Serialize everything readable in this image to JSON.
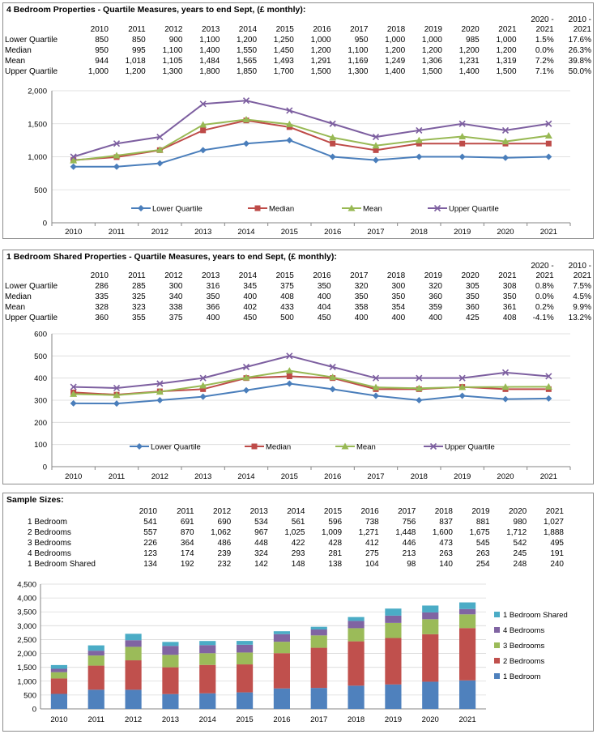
{
  "charts": [
    {
      "title": "4 Bedroom Properties - Quartile Measures, years to end Sept, (£ monthly):",
      "years": [
        "2010",
        "2011",
        "2012",
        "2013",
        "2014",
        "2015",
        "2016",
        "2017",
        "2018",
        "2019",
        "2020",
        "2021"
      ],
      "change_headers": [
        [
          "2020 -",
          "2021"
        ],
        [
          "2010 -",
          "2021"
        ]
      ],
      "rows": [
        {
          "label": "Lower Quartile",
          "values": [
            "850",
            "850",
            "900",
            "1,100",
            "1,200",
            "1,250",
            "1,000",
            "950",
            "1,000",
            "1,000",
            "985",
            "1,000"
          ],
          "changes": [
            "1.5%",
            "17.6%"
          ]
        },
        {
          "label": "Median",
          "values": [
            "950",
            "995",
            "1,100",
            "1,400",
            "1,550",
            "1,450",
            "1,200",
            "1,100",
            "1,200",
            "1,200",
            "1,200",
            "1,200"
          ],
          "changes": [
            "0.0%",
            "26.3%"
          ]
        },
        {
          "label": "Mean",
          "values": [
            "944",
            "1,018",
            "1,105",
            "1,484",
            "1,565",
            "1,493",
            "1,291",
            "1,169",
            "1,249",
            "1,306",
            "1,231",
            "1,319"
          ],
          "changes": [
            "7.2%",
            "39.8%"
          ]
        },
        {
          "label": "Upper Quartile",
          "values": [
            "1,000",
            "1,200",
            "1,300",
            "1,800",
            "1,850",
            "1,700",
            "1,500",
            "1,300",
            "1,400",
            "1,500",
            "1,400",
            "1,500"
          ],
          "changes": [
            "7.1%",
            "50.0%"
          ]
        }
      ]
    },
    {
      "title": "1 Bedroom Shared Properties - Quartile Measures, years to end Sept, (£ monthly):",
      "years": [
        "2010",
        "2011",
        "2012",
        "2013",
        "2014",
        "2015",
        "2016",
        "2017",
        "2018",
        "2019",
        "2020",
        "2021"
      ],
      "change_headers": [
        [
          "2020 -",
          "2021"
        ],
        [
          "2010 -",
          "2021"
        ]
      ],
      "rows": [
        {
          "label": "Lower Quartile",
          "values": [
            "286",
            "285",
            "300",
            "316",
            "345",
            "375",
            "350",
            "320",
            "300",
            "320",
            "305",
            "308"
          ],
          "changes": [
            "0.8%",
            "7.5%"
          ]
        },
        {
          "label": "Median",
          "values": [
            "335",
            "325",
            "340",
            "350",
            "400",
            "408",
            "400",
            "350",
            "350",
            "360",
            "350",
            "350"
          ],
          "changes": [
            "0.0%",
            "4.5%"
          ]
        },
        {
          "label": "Mean",
          "values": [
            "328",
            "323",
            "338",
            "366",
            "402",
            "433",
            "404",
            "358",
            "354",
            "359",
            "360",
            "361"
          ],
          "changes": [
            "0.2%",
            "9.9%"
          ]
        },
        {
          "label": "Upper Quartile",
          "values": [
            "360",
            "355",
            "375",
            "400",
            "450",
            "500",
            "450",
            "400",
            "400",
            "400",
            "425",
            "408"
          ],
          "changes": [
            "-4.1%",
            "13.2%"
          ]
        }
      ]
    },
    {
      "title": "Sample Sizes:",
      "years": [
        "2010",
        "2011",
        "2012",
        "2013",
        "2014",
        "2015",
        "2016",
        "2017",
        "2018",
        "2019",
        "2020",
        "2021"
      ],
      "rows": [
        {
          "label": "1 Bedroom",
          "values": [
            "541",
            "691",
            "690",
            "534",
            "561",
            "596",
            "738",
            "756",
            "837",
            "881",
            "980",
            "1,027"
          ]
        },
        {
          "label": "2 Bedrooms",
          "values": [
            "557",
            "870",
            "1,062",
            "967",
            "1,025",
            "1,009",
            "1,271",
            "1,448",
            "1,600",
            "1,675",
            "1,712",
            "1,888"
          ]
        },
        {
          "label": "3 Bedrooms",
          "values": [
            "226",
            "364",
            "486",
            "448",
            "422",
            "428",
            "412",
            "446",
            "473",
            "545",
            "542",
            "495"
          ]
        },
        {
          "label": "4 Bedrooms",
          "values": [
            "123",
            "174",
            "239",
            "324",
            "293",
            "281",
            "275",
            "213",
            "263",
            "263",
            "245",
            "191"
          ]
        },
        {
          "label": "1 Bedroom Shared",
          "values": [
            "134",
            "192",
            "232",
            "142",
            "148",
            "138",
            "104",
            "98",
            "140",
            "254",
            "248",
            "240"
          ]
        }
      ]
    }
  ],
  "chart_data": [
    {
      "type": "line",
      "title": "4 Bedroom Properties - Quartile Measures, years to end Sept, (£ monthly):",
      "x": [
        2010,
        2011,
        2012,
        2013,
        2014,
        2015,
        2016,
        2017,
        2018,
        2019,
        2020,
        2021
      ],
      "ylim": [
        0,
        2000
      ],
      "yticks": [
        0,
        500,
        1000,
        1500,
        2000
      ],
      "ytick_labels": [
        "0",
        "500",
        "1,000",
        "1,500",
        "2,000"
      ],
      "grid": true,
      "legend_position": "bottom",
      "series": [
        {
          "name": "Lower Quartile",
          "color": "#4a7ebb",
          "marker": "diamond",
          "values": [
            850,
            850,
            900,
            1100,
            1200,
            1250,
            1000,
            950,
            1000,
            1000,
            985,
            1000
          ]
        },
        {
          "name": "Median",
          "color": "#be4b48",
          "marker": "square",
          "values": [
            950,
            995,
            1100,
            1400,
            1550,
            1450,
            1200,
            1100,
            1200,
            1200,
            1200,
            1200
          ]
        },
        {
          "name": "Mean",
          "color": "#98b954",
          "marker": "triangle",
          "values": [
            944,
            1018,
            1105,
            1484,
            1565,
            1493,
            1291,
            1169,
            1249,
            1306,
            1231,
            1319
          ]
        },
        {
          "name": "Upper Quartile",
          "color": "#7d5fa0",
          "marker": "x",
          "values": [
            1000,
            1200,
            1300,
            1800,
            1850,
            1700,
            1500,
            1300,
            1400,
            1500,
            1400,
            1500
          ]
        }
      ]
    },
    {
      "type": "line",
      "title": "1 Bedroom Shared Properties - Quartile Measures, years to end Sept, (£ monthly):",
      "x": [
        2010,
        2011,
        2012,
        2013,
        2014,
        2015,
        2016,
        2017,
        2018,
        2019,
        2020,
        2021
      ],
      "ylim": [
        0,
        600
      ],
      "yticks": [
        0,
        100,
        200,
        300,
        400,
        500,
        600
      ],
      "ytick_labels": [
        "0",
        "100",
        "200",
        "300",
        "400",
        "500",
        "600"
      ],
      "grid": true,
      "legend_position": "bottom",
      "series": [
        {
          "name": "Lower Quartile",
          "color": "#4a7ebb",
          "marker": "diamond",
          "values": [
            286,
            285,
            300,
            316,
            345,
            375,
            350,
            320,
            300,
            320,
            305,
            308
          ]
        },
        {
          "name": "Median",
          "color": "#be4b48",
          "marker": "square",
          "values": [
            335,
            325,
            340,
            350,
            400,
            408,
            400,
            350,
            350,
            360,
            350,
            350
          ]
        },
        {
          "name": "Mean",
          "color": "#98b954",
          "marker": "triangle",
          "values": [
            328,
            323,
            338,
            366,
            402,
            433,
            404,
            358,
            354,
            359,
            360,
            361
          ]
        },
        {
          "name": "Upper Quartile",
          "color": "#7d5fa0",
          "marker": "x",
          "values": [
            360,
            355,
            375,
            400,
            450,
            500,
            450,
            400,
            400,
            400,
            425,
            408
          ]
        }
      ]
    },
    {
      "type": "bar",
      "stacked": true,
      "title": "Sample Sizes:",
      "categories": [
        "2010",
        "2011",
        "2012",
        "2013",
        "2014",
        "2015",
        "2016",
        "2017",
        "2018",
        "2019",
        "2020",
        "2021"
      ],
      "ylim": [
        0,
        4500
      ],
      "yticks": [
        0,
        500,
        1000,
        1500,
        2000,
        2500,
        3000,
        3500,
        4000,
        4500
      ],
      "ytick_labels": [
        "0",
        "500",
        "1,000",
        "1,500",
        "2,000",
        "2,500",
        "3,000",
        "3,500",
        "4,000",
        "4,500"
      ],
      "grid": true,
      "legend_position": "right",
      "series": [
        {
          "name": "1 Bedroom",
          "color": "#4f81bd",
          "values": [
            541,
            691,
            690,
            534,
            561,
            596,
            738,
            756,
            837,
            881,
            980,
            1027
          ]
        },
        {
          "name": "2 Bedrooms",
          "color": "#c0504d",
          "values": [
            557,
            870,
            1062,
            967,
            1025,
            1009,
            1271,
            1448,
            1600,
            1675,
            1712,
            1888
          ]
        },
        {
          "name": "3 Bedrooms",
          "color": "#9bbb59",
          "values": [
            226,
            364,
            486,
            448,
            422,
            428,
            412,
            446,
            473,
            545,
            542,
            495
          ]
        },
        {
          "name": "4 Bedrooms",
          "color": "#8064a2",
          "values": [
            123,
            174,
            239,
            324,
            293,
            281,
            275,
            213,
            263,
            263,
            245,
            191
          ]
        },
        {
          "name": "1 Bedroom Shared",
          "color": "#4bacc6",
          "values": [
            134,
            192,
            232,
            142,
            148,
            138,
            104,
            98,
            140,
            254,
            248,
            240
          ]
        }
      ]
    }
  ]
}
